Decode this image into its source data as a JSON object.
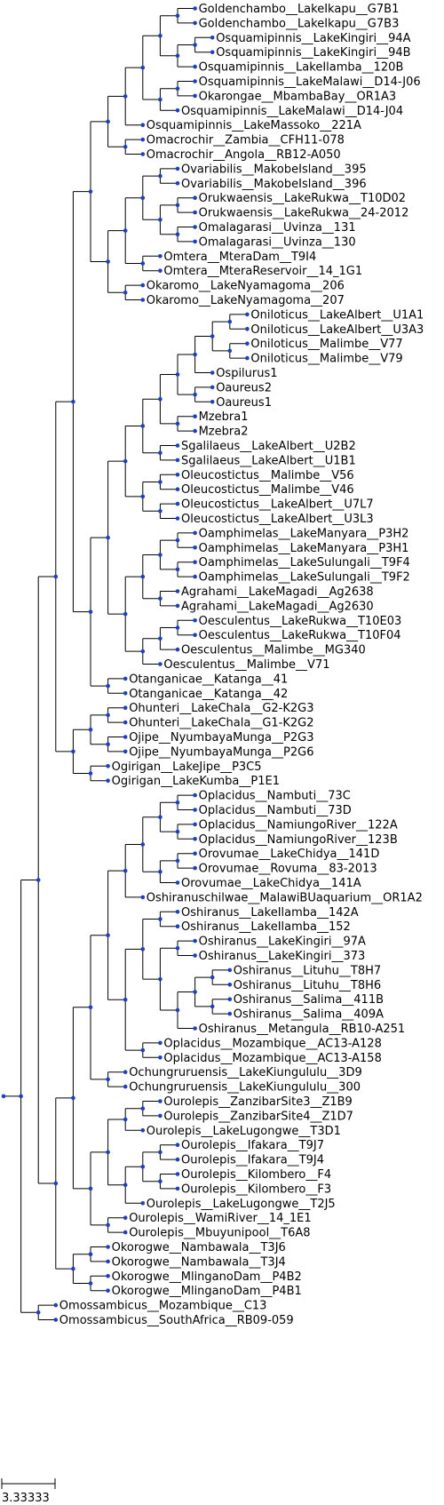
{
  "tree": {
    "newick": "(((((((((((Goldenchambo__LakeIkapu__G7B1,Goldenchambo__LakeIkapu__G7B3),((Osquamipinnis__LakeKingiri__94A,Osquamipinnis__LakeKingiri__94B),Osquamipinnis__LakeIlamba__120B)),((Osquamipinnis__LakeMalawi__D14-J06,Okarongae__MbambaBay__OR1A3),Osquamipinnis__LakeMalawi__D14-J04)),Osquamipinnis__LakeMassoko__221A),(Omacrochir__Zambia__CFH11-078,Omacrochir__Angola__RB12-A050)),((((Ovariabilis__MakobeIsland__395,Ovariabilis__MakobeIsland__396),((Orukwaensis__LakeRukwa__T10D02,Orukwaensis__LakeRukwa__24-2012),(Omalagarasi__Uvinza__131,Omalagarasi__Uvinza__130))),(Omtera__MteraDam__T9I4,Omtera__MteraReservoir__14_1G1)),(Okaromo__LakeNyamagoma__206,Okaromo__LakeNyamagoma__207))),(((((((((Oniloticus__LakeAlbert__U1A1,Oniloticus__LakeAlbert__U3A3),(Oniloticus__Malimbe__V77,Oniloticus__Malimbe__V79)),Ospilurus1),(Oaureus2,Oaureus1)),(Mzebra1,Mzebra2)),(Sgalilaeus__LakeAlbert__U2B2,Sgalilaeus__LakeAlbert__U1B1)),((Oleucostictus__Malimbe__V56,Oleucostictus__Malimbe__V46),(Oleucostictus__LakeAlbert__U7L7,Oleucostictus__LakeAlbert__U3L3))),((((Oamphimelas__LakeManyara__P3H2,Oamphimelas__LakeManyara__P3H1),(Oamphimelas__LakeSulungali__T9F4,Oamphimelas__LakeSulungali__T9F2)),(Agrahami__LakeMagadi__Ag2638,Agrahami__LakeMagadi__Ag2630)),(((Oesculentus__LakeRukwa__T10E03,Oesculentus__LakeRukwa__T10F04),Oesculentus__Malimbe__MG340),Oesculentus__Malimbe__V71))),(Otanganicae__Katanga__41,Otanganicae__Katanga__42))),(((Ohunteri__LakeChala__G2-K2G3,Ohunteri__LakeChala__G1-K2G2),(Ojipe__NyumbayaMunga__P2G3,Ojipe__NyumbayaMunga__P2G6)),(Ogirigan__LakeJipe__P3C5,Ogirigan__LakeKumba__P1E1))),((((((((Oplacidus__Nambuti__73C,Oplacidus__Nambuti__73D),(Oplacidus__NamiungoRiver__122A,Oplacidus__NamiungoRiver__123B)),((Orovumae__LakeChidya__141D,Orovumae__Rovuma__83-2013),Orovumae__LakeChidya__141A)),Oshiranuschilwae__MalawiBUaquarium__OR1A2),(((Oshiranus__LakeIlamba__142A,Oshiranus__LakeIlamba__152),((Oshiranus__LakeKingiri__97A,Oshiranus__LakeKingiri__373),(((Oshiranus__Lituhu__T8H7,Oshiranus__Lituhu__T8H6),(Oshiranus__Salima__411B,Oshiranus__Salima__409A)),Oshiranus__Metangula__RB10-A251))),(Oplacidus__Mozambique__AC13-A128,Oplacidus__Mozambique__AC13-A158))),(Ochungruruensis__LakeKiungululu__3D9,Ochungruruensis__LakeKiungululu__300)),((((Ourolepis__ZanzibarSite3__Z1B9,Ourolepis__ZanzibarSite4__Z1D7),Ourolepis__LakeLugongwe__T3D1),(((Ourolepis__Ifakara__T9J7,Ourolepis__Ifakara__T9J4),(Ourolepis__Kilombero__F4,Ourolepis__Kilombero__F3)),Ourolepis__LakeLugongwe__T2J5)),(Ourolepis__WamiRiver__14_1E1,Ourolepis__Mbuyunipool__T6A8))),((Okorogwe__Nambawala__T3J6,Okorogwe__Nambawala__T3J4),(Okorogwe__MlinganoDam__P4B2,Okorogwe__MlinganoDam__P4B1)))),(Omossambicus__Mozambique__C13,Omossambicus__SouthAfrica__RB09-059));",
    "scale_bar_label": "3.33333",
    "colors": {
      "node": "#1f3fbf",
      "branch": "#000000",
      "label": "#000000"
    }
  }
}
